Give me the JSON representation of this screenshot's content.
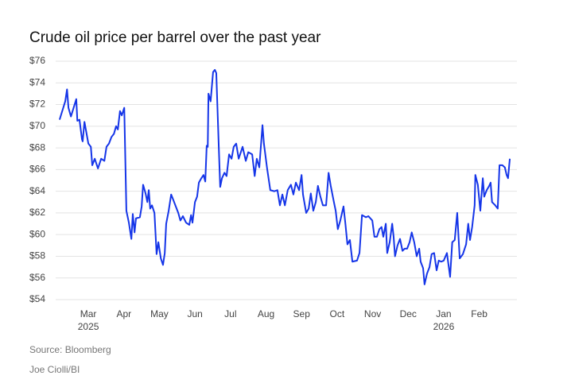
{
  "chart_data": {
    "type": "line",
    "title": "Crude oil price per barrel over the past year",
    "source": "Source: Bloomberg",
    "credit": "Joe Ciolli/BI",
    "xlim": [
      -0.92,
      12.06
    ],
    "xticks": [
      {
        "value": 0,
        "label": "Mar\n2025"
      },
      {
        "value": 1,
        "label": "Apr"
      },
      {
        "value": 2,
        "label": "May"
      },
      {
        "value": 3,
        "label": "Jun"
      },
      {
        "value": 4,
        "label": "Jul"
      },
      {
        "value": 5,
        "label": "Aug"
      },
      {
        "value": 6,
        "label": "Sep"
      },
      {
        "value": 7,
        "label": "Oct"
      },
      {
        "value": 8,
        "label": "Nov"
      },
      {
        "value": 9,
        "label": "Dec"
      },
      {
        "value": 10,
        "label": "Jan\n2026"
      },
      {
        "value": 11,
        "label": "Feb"
      }
    ],
    "ylim": [
      54,
      76
    ],
    "yticks": [
      {
        "value": 54,
        "label": "$54"
      },
      {
        "value": 56,
        "label": "$56"
      },
      {
        "value": 58,
        "label": "$58"
      },
      {
        "value": 60,
        "label": "$60"
      },
      {
        "value": 62,
        "label": "$62"
      },
      {
        "value": 64,
        "label": "$64"
      },
      {
        "value": 66,
        "label": "$66"
      },
      {
        "value": 68,
        "label": "$68"
      },
      {
        "value": 70,
        "label": "$70"
      },
      {
        "value": 72,
        "label": "$72"
      },
      {
        "value": 74,
        "label": "$74"
      },
      {
        "value": 76,
        "label": "$76"
      }
    ],
    "grid": true,
    "color": "#1535e8",
    "x": [
      -0.81,
      -0.65,
      -0.6,
      -0.56,
      -0.49,
      -0.34,
      -0.31,
      -0.25,
      -0.18,
      -0.16,
      -0.11,
      0,
      0.07,
      0.11,
      0.18,
      0.27,
      0.36,
      0.45,
      0.51,
      0.58,
      0.65,
      0.72,
      0.78,
      0.83,
      0.89,
      0.94,
      1.01,
      1.07,
      1.14,
      1.21,
      1.25,
      1.3,
      1.34,
      1.45,
      1.5,
      1.54,
      1.61,
      1.66,
      1.7,
      1.74,
      1.79,
      1.86,
      1.92,
      1.97,
      2.04,
      2.1,
      2.15,
      2.19,
      2.26,
      2.33,
      2.39,
      2.46,
      2.53,
      2.59,
      2.66,
      2.75,
      2.84,
      2.89,
      2.93,
      3.0,
      3.06,
      3.11,
      3.18,
      3.24,
      3.29,
      3.33,
      3.36,
      3.38,
      3.44,
      3.51,
      3.56,
      3.6,
      3.67,
      3.71,
      3.76,
      3.83,
      3.89,
      3.96,
      4.03,
      4.09,
      4.16,
      4.23,
      4.27,
      4.34,
      4.43,
      4.5,
      4.61,
      4.68,
      4.74,
      4.81,
      4.9,
      4.94,
      5.03,
      5.12,
      5.23,
      5.32,
      5.39,
      5.46,
      5.53,
      5.61,
      5.7,
      5.77,
      5.84,
      5.93,
      6.0,
      6.04,
      6.13,
      6.2,
      6.26,
      6.33,
      6.4,
      6.46,
      6.53,
      6.6,
      6.69,
      6.76,
      6.82,
      6.91,
      6.96,
      7.02,
      7.09,
      7.18,
      7.23,
      7.29,
      7.36,
      7.43,
      7.56,
      7.63,
      7.7,
      7.81,
      7.88,
      7.99,
      8.05,
      8.12,
      8.19,
      8.25,
      8.3,
      8.37,
      8.41,
      8.48,
      8.55,
      8.59,
      8.63,
      8.7,
      8.77,
      8.84,
      8.9,
      8.97,
      9.04,
      9.1,
      9.17,
      9.24,
      9.31,
      9.35,
      9.42,
      9.46,
      9.53,
      9.6,
      9.66,
      9.73,
      9.8,
      9.86,
      9.93,
      10.0,
      10.09,
      10.18,
      10.24,
      10.31,
      10.38,
      10.45,
      10.54,
      10.63,
      10.69,
      10.74,
      10.8,
      10.87,
      10.89,
      10.96,
      11.03,
      11.1,
      11.14,
      11.21,
      11.28,
      11.32,
      11.36,
      11.45,
      11.52,
      11.57,
      11.65,
      11.72,
      11.77,
      11.81,
      11.86
    ],
    "values": [
      70.6,
      72.3,
      73.4,
      71.7,
      70.9,
      72.5,
      70.5,
      70.6,
      68.8,
      68.6,
      70.4,
      68.4,
      68.1,
      66.4,
      67.0,
      66.1,
      67.0,
      66.8,
      68.1,
      68.4,
      69.0,
      69.3,
      70.0,
      69.7,
      71.4,
      71.0,
      71.7,
      62.2,
      61.1,
      59.6,
      61.9,
      60.2,
      61.5,
      61.6,
      62.6,
      64.6,
      63.8,
      63.0,
      64.1,
      62.4,
      62.7,
      62.0,
      58.2,
      59.3,
      57.8,
      57.2,
      58.3,
      61.0,
      62.2,
      63.7,
      63.2,
      62.6,
      62.0,
      61.3,
      61.7,
      61.1,
      60.9,
      61.8,
      61.1,
      63.0,
      63.5,
      64.8,
      65.2,
      65.5,
      64.9,
      68.2,
      68.1,
      73.0,
      72.3,
      75.0,
      75.2,
      74.9,
      68.1,
      64.4,
      65.2,
      65.7,
      65.4,
      67.4,
      67.0,
      68.1,
      68.4,
      67.0,
      67.4,
      68.1,
      66.8,
      67.6,
      67.4,
      65.4,
      67.0,
      66.2,
      70.1,
      68.4,
      66.1,
      64.1,
      64.0,
      64.1,
      62.7,
      63.7,
      62.7,
      64.1,
      64.6,
      63.7,
      64.8,
      64.1,
      65.5,
      63.7,
      62.0,
      62.4,
      63.8,
      62.2,
      63.0,
      64.5,
      63.5,
      62.7,
      62.7,
      65.7,
      64.5,
      63.0,
      62.2,
      60.5,
      61.3,
      62.6,
      61.1,
      59.1,
      59.5,
      57.5,
      57.6,
      58.3,
      61.8,
      61.6,
      61.7,
      61.3,
      59.8,
      59.8,
      60.5,
      60.7,
      59.8,
      61.0,
      58.3,
      59.3,
      61.0,
      59.8,
      58.0,
      59.0,
      59.6,
      58.5,
      58.7,
      58.7,
      59.3,
      60.2,
      59.3,
      58.0,
      58.7,
      57.5,
      56.9,
      55.4,
      56.4,
      57.0,
      58.2,
      58.3,
      56.7,
      57.6,
      57.5,
      57.6,
      58.3,
      56.1,
      59.3,
      59.5,
      62.0,
      57.8,
      58.2,
      59.1,
      61.0,
      59.5,
      60.7,
      62.7,
      65.5,
      64.6,
      62.2,
      65.2,
      63.5,
      64.1,
      64.5,
      64.8,
      63.0,
      62.7,
      62.4,
      66.4,
      66.4,
      66.2,
      65.5,
      65.2,
      67.0
    ]
  }
}
